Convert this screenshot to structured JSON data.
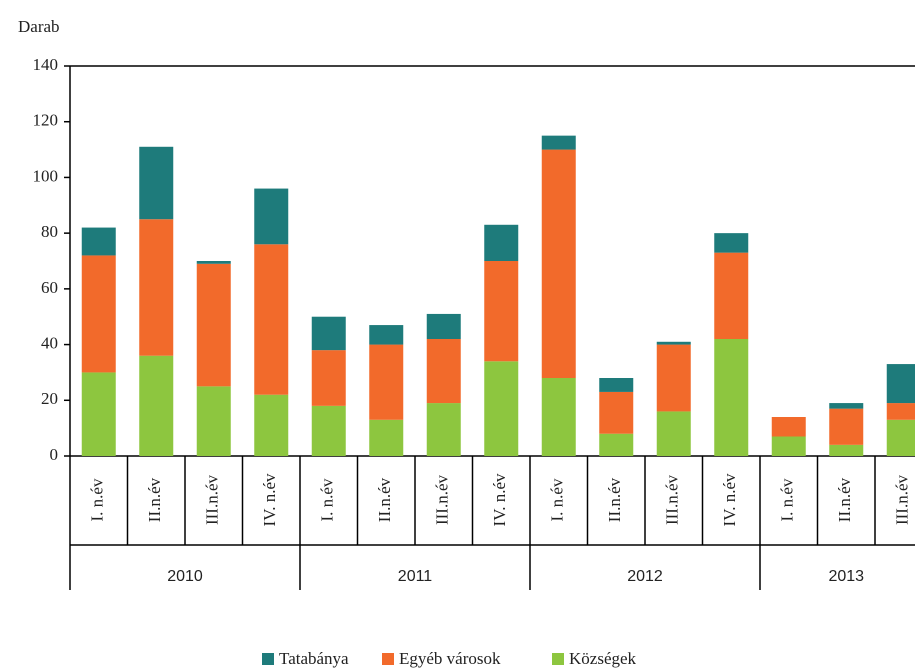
{
  "chart_data": {
    "type": "stacked_bar",
    "y_label": "Darab",
    "groups": [
      {
        "name": "2010",
        "categories": [
          "I. n.év",
          "II.n.év",
          "III.n.év",
          "IV. n.év"
        ]
      },
      {
        "name": "2011",
        "categories": [
          "I. n.év",
          "II.n.év",
          "III.n.év",
          "IV. n.év"
        ]
      },
      {
        "name": "2012",
        "categories": [
          "I. n.év",
          "II.n.év",
          "III.n.év",
          "IV. n.év"
        ]
      },
      {
        "name": "2013",
        "categories": [
          "I. n.év",
          "II.n.év",
          "III.n.év"
        ]
      }
    ],
    "series": [
      {
        "name": "Tatabánya",
        "color": "#1e7b7b",
        "values": [
          10,
          26,
          1,
          20,
          12,
          7,
          9,
          13,
          5,
          5,
          1,
          7,
          0,
          2,
          14
        ]
      },
      {
        "name": "Egyéb városok",
        "color": "#f26a2b",
        "values": [
          42,
          49,
          44,
          54,
          20,
          27,
          23,
          36,
          82,
          15,
          24,
          31,
          7,
          13,
          6
        ]
      },
      {
        "name": "Községek",
        "color": "#8dc63f",
        "values": [
          30,
          36,
          25,
          22,
          18,
          13,
          19,
          34,
          28,
          8,
          16,
          42,
          7,
          4,
          13
        ]
      }
    ],
    "ylim": [
      0,
      140
    ],
    "yticks": [
      0,
      20,
      40,
      60,
      80,
      100,
      120,
      140
    ],
    "legend": "bottom"
  }
}
